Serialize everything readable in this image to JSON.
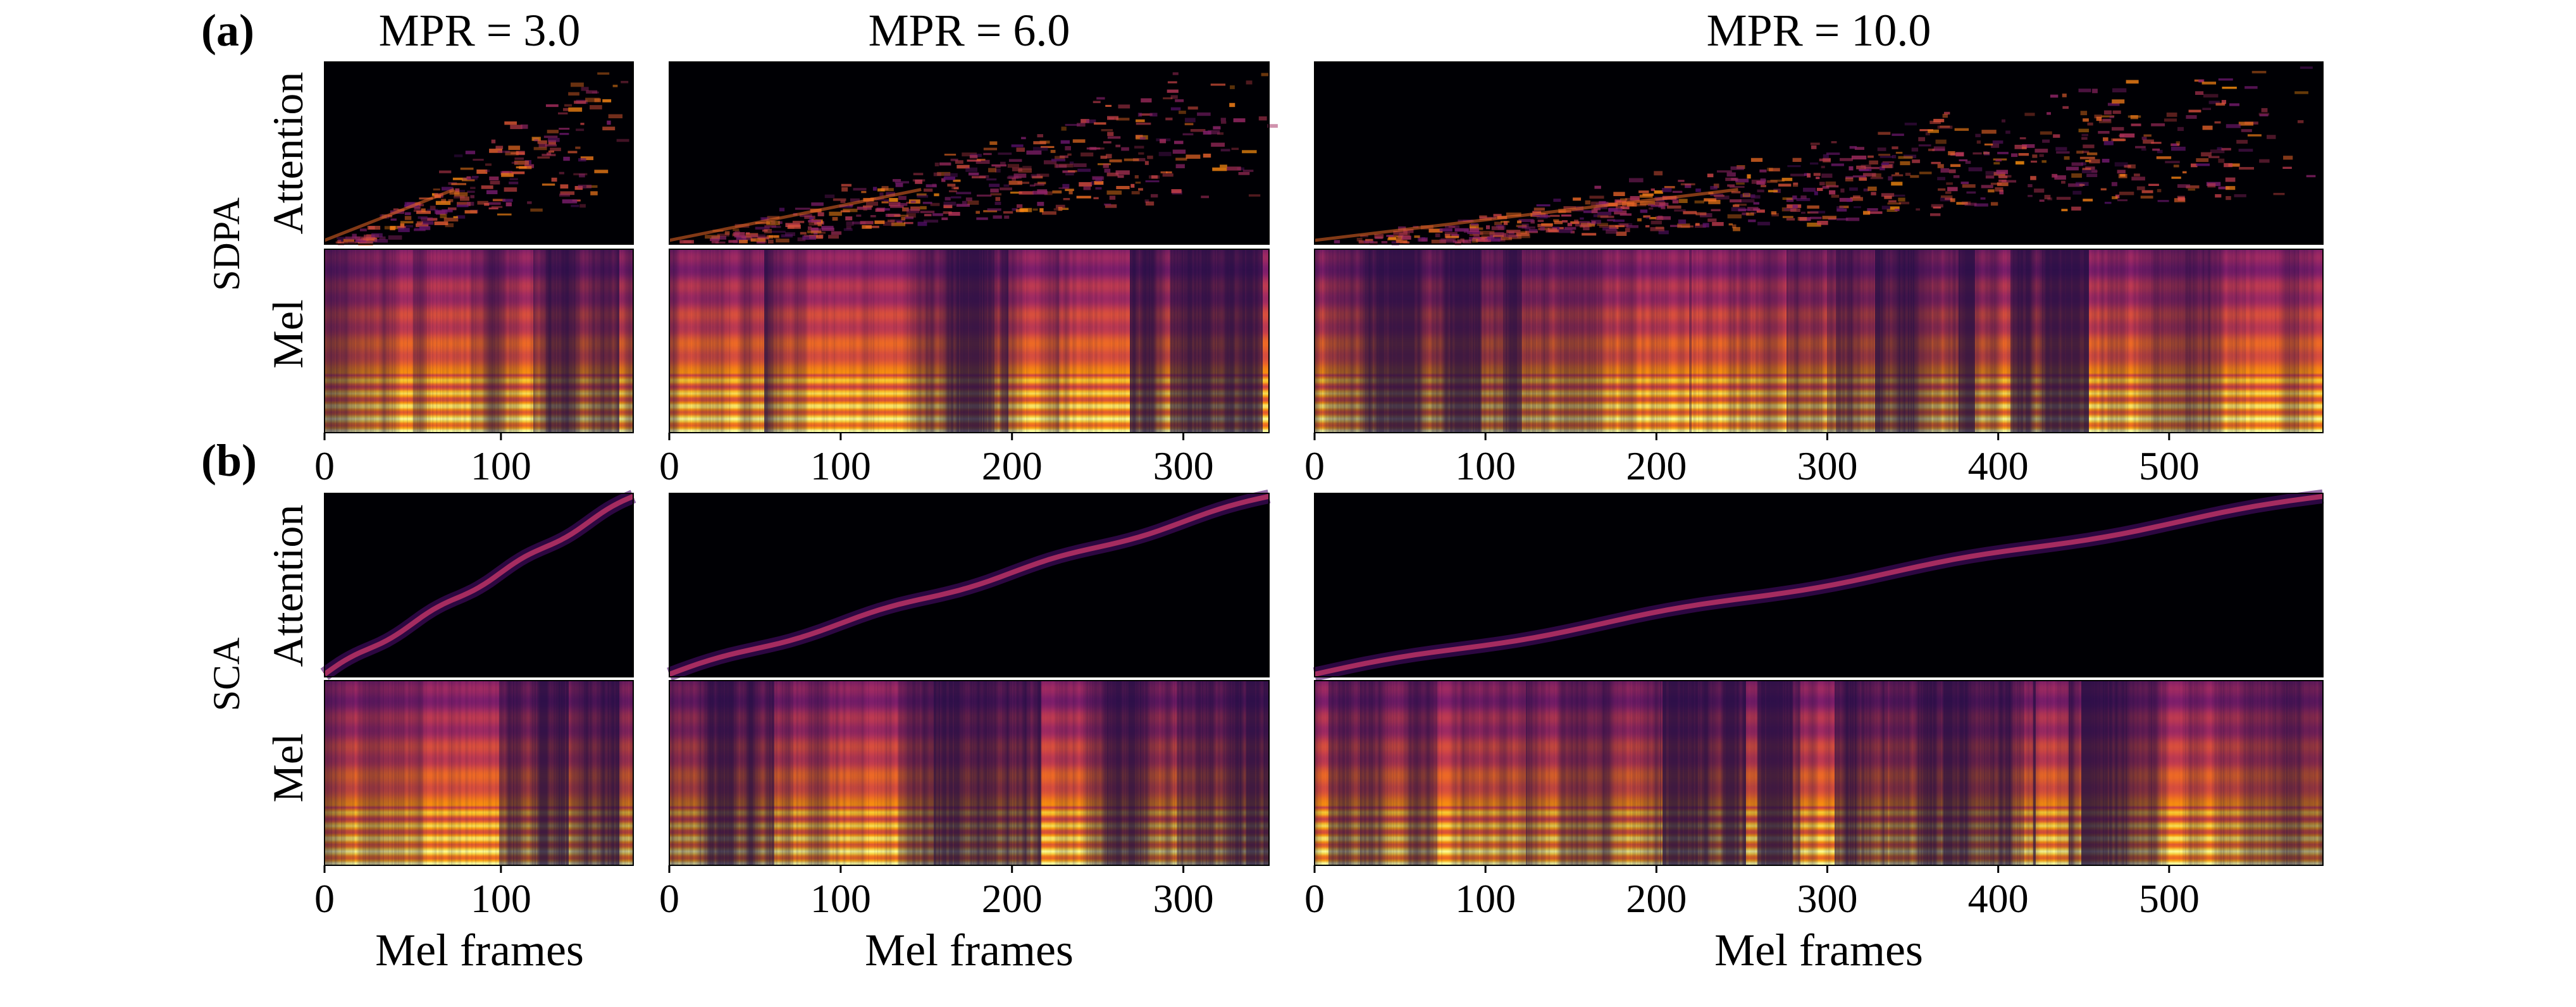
{
  "figure": {
    "section_labels": [
      "(a)",
      "(b)"
    ],
    "column_titles": [
      "MPR = 3.0",
      "MPR = 6.0",
      "MPR = 10.0"
    ],
    "row_group_labels": [
      "SDPA",
      "SCA"
    ],
    "panel_ylabels": [
      "Attention",
      "Mel"
    ],
    "xlabel": "Mel frames",
    "colormap": [
      "#000004",
      "#1b0c41",
      "#4a0c6b",
      "#781c6d",
      "#a52c60",
      "#cf4446",
      "#ed6925",
      "#fb9b06",
      "#f7d13d",
      "#fcffa4"
    ]
  },
  "chart_data": [
    {
      "type": "heatmap",
      "section": "(a)",
      "method": "SDPA",
      "mpr": "MPR = 3.0",
      "xlim": [
        0,
        175
      ],
      "xticks": [
        0,
        100
      ],
      "panels": [
        {
          "kind": "attention",
          "ylabel": "Attention",
          "alignment": "diffuse"
        },
        {
          "kind": "mel",
          "ylabel": "Mel"
        }
      ]
    },
    {
      "type": "heatmap",
      "section": "(a)",
      "method": "SDPA",
      "mpr": "MPR = 6.0",
      "xlim": [
        0,
        350
      ],
      "xticks": [
        0,
        100,
        200,
        300
      ],
      "panels": [
        {
          "kind": "attention",
          "ylabel": "Attention",
          "alignment": "diffuse"
        },
        {
          "kind": "mel",
          "ylabel": "Mel"
        }
      ]
    },
    {
      "type": "heatmap",
      "section": "(a)",
      "method": "SDPA",
      "mpr": "MPR = 10.0",
      "xlim": [
        0,
        590
      ],
      "xticks": [
        0,
        100,
        200,
        300,
        400,
        500
      ],
      "panels": [
        {
          "kind": "attention",
          "ylabel": "Attention",
          "alignment": "diffuse"
        },
        {
          "kind": "mel",
          "ylabel": "Mel"
        }
      ]
    },
    {
      "type": "heatmap",
      "section": "(b)",
      "method": "SCA",
      "mpr": "MPR = 3.0",
      "xlim": [
        0,
        175
      ],
      "xticks": [
        0,
        100
      ],
      "panels": [
        {
          "kind": "attention",
          "ylabel": "Attention",
          "alignment": "monotonic"
        },
        {
          "kind": "mel",
          "ylabel": "Mel"
        }
      ]
    },
    {
      "type": "heatmap",
      "section": "(b)",
      "method": "SCA",
      "mpr": "MPR = 6.0",
      "xlim": [
        0,
        350
      ],
      "xticks": [
        0,
        100,
        200,
        300
      ],
      "panels": [
        {
          "kind": "attention",
          "ylabel": "Attention",
          "alignment": "monotonic"
        },
        {
          "kind": "mel",
          "ylabel": "Mel"
        }
      ]
    },
    {
      "type": "heatmap",
      "section": "(b)",
      "method": "SCA",
      "mpr": "MPR = 10.0",
      "xlim": [
        0,
        590
      ],
      "xticks": [
        0,
        100,
        200,
        300,
        400,
        500
      ],
      "panels": [
        {
          "kind": "attention",
          "ylabel": "Attention",
          "alignment": "monotonic"
        },
        {
          "kind": "mel",
          "ylabel": "Mel"
        }
      ]
    }
  ]
}
